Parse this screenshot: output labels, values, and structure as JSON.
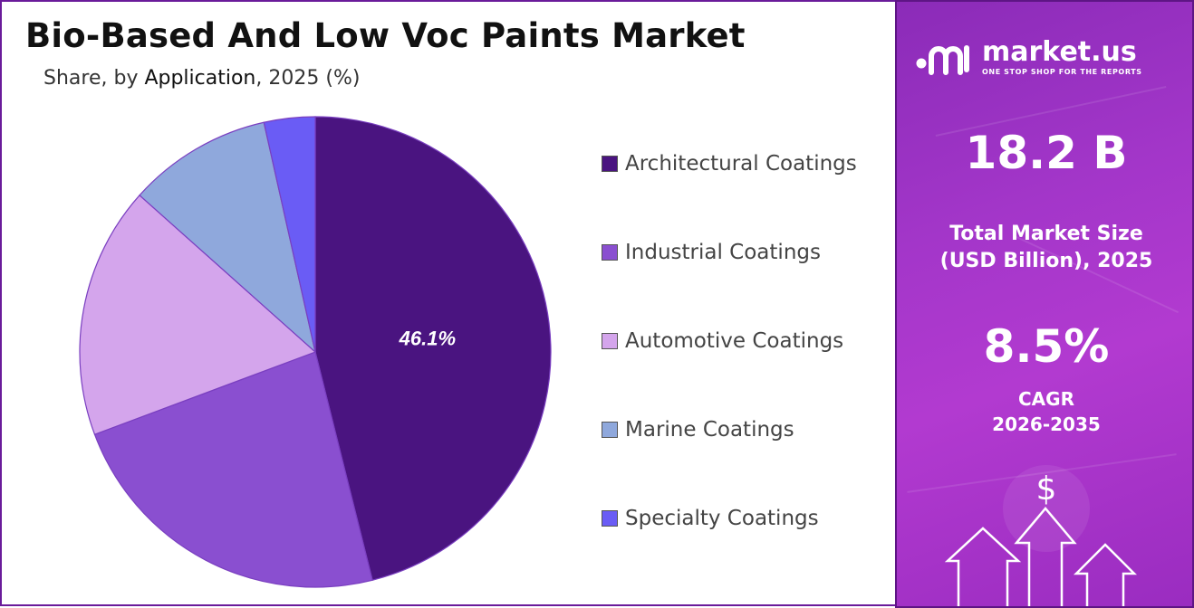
{
  "title": "Bio-Based And Low Voc Paints Market",
  "subtitle": {
    "prefix": "Share, by ",
    "segment": "Application",
    "suffix": ", 2025 (%)"
  },
  "chart_data": {
    "type": "pie",
    "categories": [
      "Architectural Coatings",
      "Industrial Coatings",
      "Automotive Coatings",
      "Marine Coatings",
      "Specialty Coatings"
    ],
    "values": [
      46.1,
      23.2,
      17.3,
      9.9,
      3.5
    ],
    "colors": [
      "#4a1480",
      "#8a4fd0",
      "#d4a5ec",
      "#8fa8dc",
      "#6a5cf5"
    ],
    "data_labels": [
      "46.1%",
      "",
      "",
      "",
      ""
    ],
    "legend_position": "right"
  },
  "sidebar": {
    "brand_name": "market.us",
    "brand_tagline": "ONE STOP SHOP FOR THE REPORTS",
    "market_size_value": "18.2 B",
    "market_size_label_line1": "Total Market Size",
    "market_size_label_line2": "(USD Billion), 2025",
    "cagr_value": "8.5%",
    "cagr_label_line1": "CAGR",
    "cagr_label_line2": "2026-2035",
    "currency_symbol": "$"
  }
}
